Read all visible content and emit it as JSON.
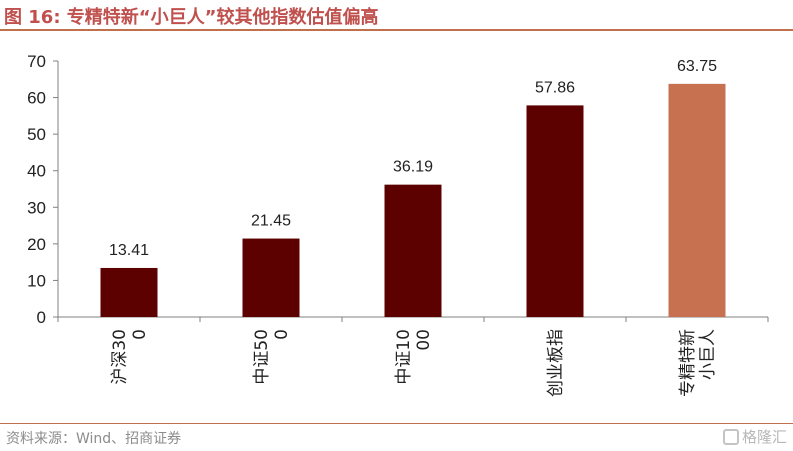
{
  "figure": {
    "title": "图 16:  专精特新“小巨人”较其他指数估值偏高",
    "source": "资料来源：Wind、招商证券",
    "watermark": "格隆汇"
  },
  "colors": {
    "title": "#c0504d",
    "bar_default": "#5c0000",
    "bar_highlight": "#c87150"
  },
  "chart_data": {
    "type": "bar",
    "categories": [
      "沪深300",
      "中证500",
      "中证1000",
      "创业板指",
      "专精特新小巨人"
    ],
    "values": [
      13.41,
      21.45,
      36.19,
      57.86,
      63.75
    ],
    "data_labels": [
      "13.41",
      "21.45",
      "36.19",
      "57.86",
      "63.75"
    ],
    "title": "",
    "xlabel": "",
    "ylabel": "",
    "ylim": [
      0,
      70
    ],
    "yticks": [
      0,
      10,
      20,
      30,
      40,
      50,
      60,
      70
    ],
    "highlight_index": 4,
    "grid": false,
    "legend": "none"
  }
}
